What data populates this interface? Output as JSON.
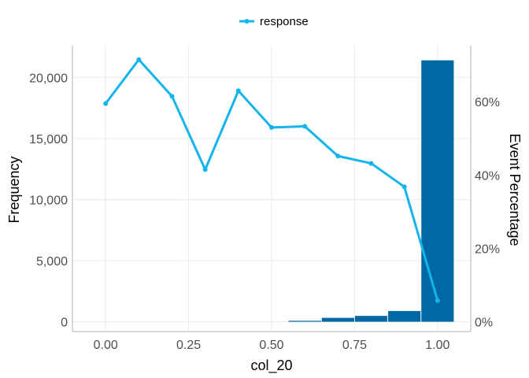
{
  "chart_data": {
    "type": "bar",
    "xlabel": "col_20",
    "ylabel": "Frequency",
    "y2label": "Event Percentage",
    "x_ticks": [
      "0.00",
      "0.25",
      "0.50",
      "0.75",
      "1.00"
    ],
    "y_ticks": [
      "0",
      "5,000",
      "10,000",
      "15,000",
      "20,000"
    ],
    "y2_ticks": [
      "0%",
      "20%",
      "40%",
      "60%"
    ],
    "xlim": [
      -0.1,
      1.1
    ],
    "ylim": [
      -800,
      22600
    ],
    "y2lim": [
      -2.67,
      75.3
    ],
    "bars": {
      "x": [
        0.6,
        0.7,
        0.8,
        0.9,
        1.0
      ],
      "width": 0.1,
      "values": [
        80,
        320,
        480,
        880,
        21400
      ],
      "color": "#0168a3"
    },
    "series": [
      {
        "name": "response",
        "color": "#14b4ec",
        "x": [
          0.0,
          0.1,
          0.2,
          0.3,
          0.4,
          0.5,
          0.6,
          0.7,
          0.8,
          0.9,
          1.0
        ],
        "values": [
          59.5,
          71.5,
          61.5,
          41.5,
          63.0,
          53.0,
          53.3,
          45.2,
          43.2,
          36.8,
          5.8
        ]
      }
    ],
    "legend": {
      "position": "top",
      "label": "response"
    },
    "grid": true
  }
}
